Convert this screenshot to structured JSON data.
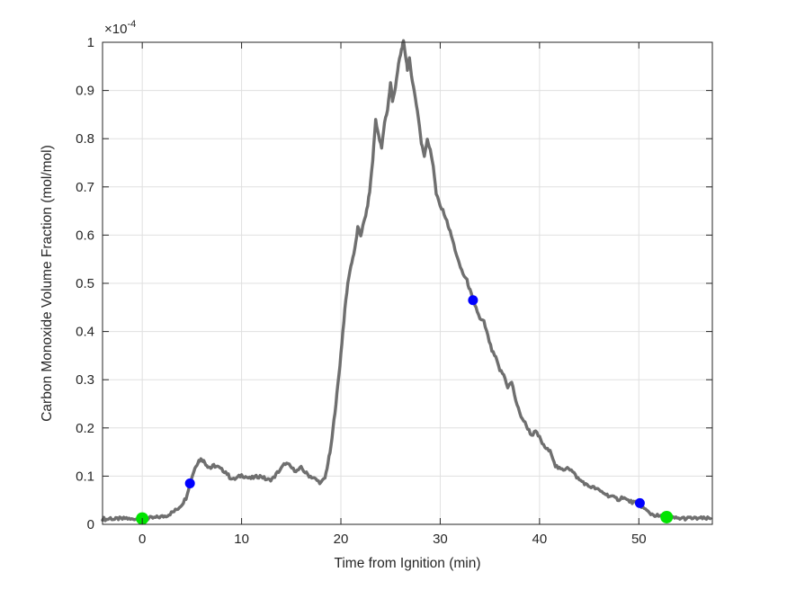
{
  "figure": {
    "background": "#ffffff",
    "axes_color": "#262626",
    "grid_color": "#e0e0e0",
    "tick_label_color": "#262626"
  },
  "chart_data": {
    "type": "line",
    "title": "",
    "xlabel": "Time from Ignition (min)",
    "ylabel": "Carbon Monoxide Volume Fraction (mol/mol)",
    "y_exponent": {
      "base": "×10",
      "power": "-4"
    },
    "y_units_multiplier": 0.0001,
    "xlim": [
      -4,
      57.4
    ],
    "ylim": [
      0,
      1
    ],
    "xticks": [
      0,
      10,
      20,
      30,
      40,
      50
    ],
    "yticks": [
      0,
      0.1,
      0.2,
      0.3,
      0.4,
      0.5,
      0.6,
      0.7,
      0.8,
      0.9,
      1
    ],
    "grid": true,
    "legend": null,
    "series": [
      {
        "name": "co-volume-fraction-trace",
        "color": "#6f6f6f",
        "points": [
          [
            -4,
            0.012
          ],
          [
            -3.6,
            0.01
          ],
          [
            -3.2,
            0.013
          ],
          [
            -2.8,
            0.01
          ],
          [
            -2.4,
            0.012
          ],
          [
            -2,
            0.011
          ],
          [
            -1.6,
            0.013
          ],
          [
            -1.2,
            0.01
          ],
          [
            -0.8,
            0.012
          ],
          [
            -0.4,
            0.011
          ],
          [
            0,
            0.012
          ],
          [
            0.4,
            0.011
          ],
          [
            0.8,
            0.013
          ],
          [
            1.2,
            0.013
          ],
          [
            1.6,
            0.015
          ],
          [
            2,
            0.016
          ],
          [
            2.4,
            0.018
          ],
          [
            2.8,
            0.022
          ],
          [
            3.2,
            0.027
          ],
          [
            3.6,
            0.033
          ],
          [
            4,
            0.042
          ],
          [
            4.4,
            0.055
          ],
          [
            4.8,
            0.085
          ],
          [
            5.1,
            0.105
          ],
          [
            5.4,
            0.122
          ],
          [
            5.7,
            0.132
          ],
          [
            6,
            0.136
          ],
          [
            6.3,
            0.128
          ],
          [
            6.6,
            0.121
          ],
          [
            6.9,
            0.117
          ],
          [
            7.2,
            0.122
          ],
          [
            7.6,
            0.119
          ],
          [
            8,
            0.113
          ],
          [
            8.4,
            0.109
          ],
          [
            8.8,
            0.098
          ],
          [
            9.2,
            0.093
          ],
          [
            9.6,
            0.097
          ],
          [
            10,
            0.102
          ],
          [
            10.4,
            0.099
          ],
          [
            10.8,
            0.095
          ],
          [
            11.2,
            0.097
          ],
          [
            11.6,
            0.099
          ],
          [
            12,
            0.1
          ],
          [
            12.4,
            0.094
          ],
          [
            12.8,
            0.092
          ],
          [
            13.2,
            0.096
          ],
          [
            13.6,
            0.107
          ],
          [
            14,
            0.116
          ],
          [
            14.4,
            0.127
          ],
          [
            14.8,
            0.122
          ],
          [
            15.2,
            0.114
          ],
          [
            15.6,
            0.111
          ],
          [
            16,
            0.117
          ],
          [
            16.4,
            0.108
          ],
          [
            16.8,
            0.101
          ],
          [
            17.2,
            0.097
          ],
          [
            17.6,
            0.091
          ],
          [
            18,
            0.086
          ],
          [
            18.4,
            0.096
          ],
          [
            18.7,
            0.128
          ],
          [
            19,
            0.16
          ],
          [
            19.3,
            0.215
          ],
          [
            19.6,
            0.27
          ],
          [
            19.9,
            0.33
          ],
          [
            20.2,
            0.4
          ],
          [
            20.5,
            0.465
          ],
          [
            20.8,
            0.515
          ],
          [
            21.1,
            0.545
          ],
          [
            21.4,
            0.57
          ],
          [
            21.7,
            0.615
          ],
          [
            22,
            0.6
          ],
          [
            22.3,
            0.625
          ],
          [
            22.6,
            0.65
          ],
          [
            22.9,
            0.69
          ],
          [
            23.2,
            0.755
          ],
          [
            23.5,
            0.84
          ],
          [
            23.8,
            0.805
          ],
          [
            24.1,
            0.78
          ],
          [
            24.4,
            0.835
          ],
          [
            24.7,
            0.86
          ],
          [
            25,
            0.915
          ],
          [
            25.2,
            0.88
          ],
          [
            25.5,
            0.905
          ],
          [
            25.8,
            0.955
          ],
          [
            26.1,
            0.985
          ],
          [
            26.3,
            1
          ],
          [
            26.5,
            0.975
          ],
          [
            26.7,
            0.945
          ],
          [
            26.9,
            0.965
          ],
          [
            27.2,
            0.92
          ],
          [
            27.5,
            0.885
          ],
          [
            27.8,
            0.845
          ],
          [
            28.1,
            0.79
          ],
          [
            28.4,
            0.765
          ],
          [
            28.7,
            0.8
          ],
          [
            29,
            0.775
          ],
          [
            29.3,
            0.745
          ],
          [
            29.6,
            0.685
          ],
          [
            30,
            0.66
          ],
          [
            30.4,
            0.645
          ],
          [
            30.8,
            0.62
          ],
          [
            31.1,
            0.6
          ],
          [
            31.5,
            0.57
          ],
          [
            31.9,
            0.54
          ],
          [
            32.3,
            0.52
          ],
          [
            32.7,
            0.505
          ],
          [
            33,
            0.485
          ],
          [
            33.3,
            0.465
          ],
          [
            33.6,
            0.45
          ],
          [
            34,
            0.425
          ],
          [
            34.4,
            0.42
          ],
          [
            34.8,
            0.39
          ],
          [
            35.2,
            0.36
          ],
          [
            35.6,
            0.345
          ],
          [
            36,
            0.32
          ],
          [
            36.4,
            0.31
          ],
          [
            36.8,
            0.285
          ],
          [
            37.2,
            0.295
          ],
          [
            37.6,
            0.258
          ],
          [
            38,
            0.23
          ],
          [
            38.4,
            0.215
          ],
          [
            38.8,
            0.2
          ],
          [
            39.2,
            0.185
          ],
          [
            39.6,
            0.192
          ],
          [
            40,
            0.18
          ],
          [
            40.4,
            0.163
          ],
          [
            40.8,
            0.155
          ],
          [
            41.2,
            0.148
          ],
          [
            41.6,
            0.122
          ],
          [
            42,
            0.115
          ],
          [
            42.4,
            0.112
          ],
          [
            42.8,
            0.12
          ],
          [
            43.2,
            0.112
          ],
          [
            43.6,
            0.102
          ],
          [
            44,
            0.092
          ],
          [
            44.4,
            0.088
          ],
          [
            44.8,
            0.08
          ],
          [
            45.2,
            0.078
          ],
          [
            45.6,
            0.075
          ],
          [
            46,
            0.07
          ],
          [
            46.4,
            0.066
          ],
          [
            46.8,
            0.061
          ],
          [
            47.2,
            0.058
          ],
          [
            47.6,
            0.054
          ],
          [
            48,
            0.052
          ],
          [
            48.4,
            0.057
          ],
          [
            48.8,
            0.05
          ],
          [
            49.2,
            0.047
          ],
          [
            49.6,
            0.045
          ],
          [
            50,
            0.044
          ],
          [
            50.4,
            0.035
          ],
          [
            50.8,
            0.028
          ],
          [
            51.2,
            0.022
          ],
          [
            51.6,
            0.019
          ],
          [
            52,
            0.017
          ],
          [
            52.4,
            0.016
          ],
          [
            52.8,
            0.015
          ],
          [
            53.2,
            0.014
          ],
          [
            53.6,
            0.013
          ],
          [
            54,
            0.012
          ],
          [
            54.4,
            0.013
          ],
          [
            54.8,
            0.012
          ],
          [
            55.2,
            0.013
          ],
          [
            55.6,
            0.012
          ],
          [
            56,
            0.013
          ],
          [
            56.4,
            0.012
          ],
          [
            56.8,
            0.012
          ],
          [
            57.2,
            0.012
          ]
        ]
      }
    ],
    "markers": [
      {
        "name": "highlight-points-blue",
        "color": "#0000ff",
        "size": 11,
        "points": [
          [
            4.8,
            0.085
          ],
          [
            33.3,
            0.465
          ],
          [
            50.1,
            0.044
          ]
        ]
      },
      {
        "name": "highlight-points-green",
        "color": "#00e400",
        "size": 14,
        "points": [
          [
            0,
            0.012
          ],
          [
            52.8,
            0.015
          ]
        ]
      }
    ]
  }
}
